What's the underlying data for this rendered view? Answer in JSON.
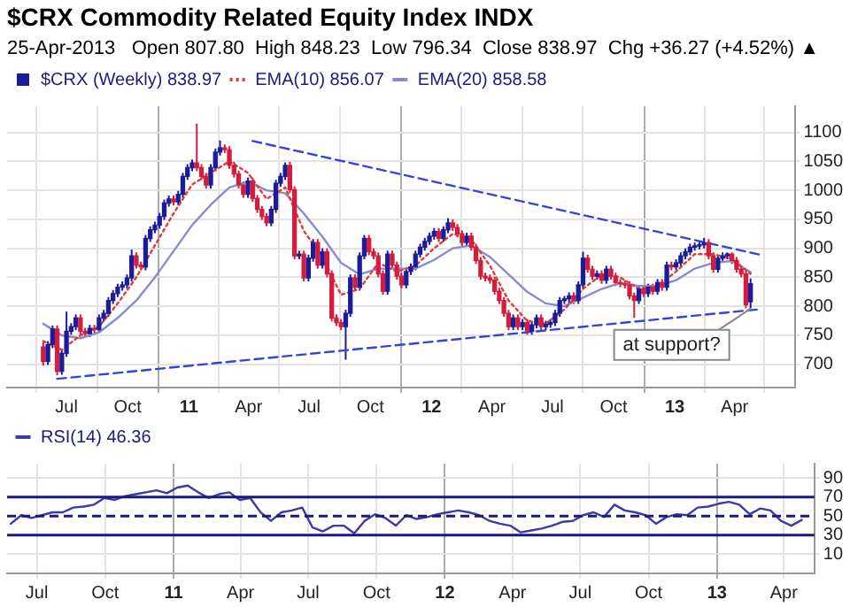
{
  "chart_data": [
    {
      "type": "candlestick",
      "title": "$CRX Commodity Related Equity Index INDX",
      "subtitle": "25-Apr-2013   Open 807.80  High 848.23  Low 796.34  Close 838.97  Chg +36.27 (+4.52%) ▲",
      "annotations": [
        {
          "text": "at support?",
          "x": "2013-04-25",
          "y": 796
        }
      ],
      "xlim": [
        "2010-05-22",
        "2013-05-12"
      ],
      "xticks": [
        {
          "value": "2010-07-01",
          "label": "Jul"
        },
        {
          "value": "2010-10-01",
          "label": "Oct"
        },
        {
          "value": "2011-01-01",
          "label": "11"
        },
        {
          "value": "2011-04-01",
          "label": "Apr"
        },
        {
          "value": "2011-07-01",
          "label": "Jul"
        },
        {
          "value": "2011-10-01",
          "label": "Oct"
        },
        {
          "value": "2012-01-01",
          "label": "12"
        },
        {
          "value": "2012-04-01",
          "label": "Apr"
        },
        {
          "value": "2012-07-01",
          "label": "Jul"
        },
        {
          "value": "2012-10-01",
          "label": "Oct"
        },
        {
          "value": "2013-01-01",
          "label": "13"
        },
        {
          "value": "2013-04-01",
          "label": "Apr"
        }
      ],
      "ylim": [
        660,
        1145
      ],
      "yticks": [
        700,
        750,
        800,
        850,
        900,
        950,
        1000,
        1050,
        1100
      ],
      "grid": true,
      "legend": "top left",
      "marker": "none",
      "series": [
        {
          "name": "$CRX (Weekly) 838.97",
          "x": [
            "2010-05-27",
            "2010-06-03",
            "2010-06-10",
            "2010-06-17",
            "2010-06-24",
            "2010-07-01",
            "2010-07-08",
            "2010-07-15",
            "2010-07-22",
            "2010-07-29",
            "2010-08-05",
            "2010-08-12",
            "2010-08-19",
            "2010-08-26",
            "2010-09-02",
            "2010-09-09",
            "2010-09-16",
            "2010-09-23",
            "2010-09-30",
            "2010-10-07",
            "2010-10-14",
            "2010-10-21",
            "2010-10-28",
            "2010-11-04",
            "2010-11-11",
            "2010-11-18",
            "2010-11-25",
            "2010-12-02",
            "2010-12-09",
            "2010-12-16",
            "2010-12-23",
            "2010-12-30",
            "2011-01-06",
            "2011-01-13",
            "2011-01-20",
            "2011-01-27",
            "2011-02-03",
            "2011-02-10",
            "2011-02-17",
            "2011-02-24",
            "2011-03-03",
            "2011-03-10",
            "2011-03-17",
            "2011-03-24",
            "2011-03-31",
            "2011-04-07",
            "2011-04-14",
            "2011-04-21",
            "2011-04-28",
            "2011-05-05",
            "2011-05-12",
            "2011-05-19",
            "2011-05-26",
            "2011-06-02",
            "2011-06-09",
            "2011-06-16",
            "2011-06-23",
            "2011-06-30",
            "2011-07-07",
            "2011-07-14",
            "2011-07-21",
            "2011-07-28",
            "2011-08-04",
            "2011-08-11",
            "2011-08-18",
            "2011-08-25",
            "2011-09-01",
            "2011-09-08",
            "2011-09-15",
            "2011-09-22",
            "2011-09-29",
            "2011-10-06",
            "2011-10-13",
            "2011-10-20",
            "2011-10-27",
            "2011-11-03",
            "2011-11-10",
            "2011-11-17",
            "2011-11-24",
            "2011-12-01",
            "2011-12-08",
            "2011-12-15",
            "2011-12-22",
            "2011-12-29",
            "2012-01-05",
            "2012-01-12",
            "2012-01-19",
            "2012-01-26",
            "2012-02-02",
            "2012-02-09",
            "2012-02-16",
            "2012-02-23",
            "2012-03-01",
            "2012-03-08",
            "2012-03-15",
            "2012-03-22",
            "2012-03-29",
            "2012-04-05",
            "2012-04-12",
            "2012-04-19",
            "2012-04-26",
            "2012-05-03",
            "2012-05-10",
            "2012-05-17",
            "2012-05-24",
            "2012-05-31",
            "2012-06-07",
            "2012-06-14",
            "2012-06-21",
            "2012-06-28",
            "2012-07-05",
            "2012-07-12",
            "2012-07-19",
            "2012-07-26",
            "2012-08-02",
            "2012-08-09",
            "2012-08-16",
            "2012-08-23",
            "2012-08-30",
            "2012-09-06",
            "2012-09-13",
            "2012-09-20",
            "2012-09-27",
            "2012-10-04",
            "2012-10-11",
            "2012-10-18",
            "2012-10-25",
            "2012-11-01",
            "2012-11-08",
            "2012-11-15",
            "2012-11-22",
            "2012-11-29",
            "2012-12-06",
            "2012-12-13",
            "2012-12-20",
            "2012-12-27",
            "2013-01-03",
            "2013-01-10",
            "2013-01-17",
            "2013-01-24",
            "2013-01-31",
            "2013-02-07",
            "2013-02-14",
            "2013-02-21",
            "2013-02-28",
            "2013-03-07",
            "2013-03-14",
            "2013-03-21",
            "2013-03-28",
            "2013-04-04",
            "2013-04-11",
            "2013-04-18",
            "2013-04-25"
          ],
          "ohlc": [
            [
              730,
              738,
              698,
              705
            ],
            [
              705,
              740,
              699,
              734
            ],
            [
              734,
              767,
              728,
              761
            ],
            [
              761,
              767,
              681,
              688
            ],
            [
              688,
              725,
              682,
              719
            ],
            [
              719,
              791,
              713,
              757
            ],
            [
              757,
              771,
              751,
              765
            ],
            [
              765,
              786,
              759,
              780
            ],
            [
              780,
              786,
              751,
              757
            ],
            [
              757,
              763,
              747,
              753
            ],
            [
              753,
              768,
              747,
              762
            ],
            [
              762,
              768,
              754,
              760
            ],
            [
              760,
              786,
              754,
              780
            ],
            [
              780,
              794,
              774,
              788
            ],
            [
              788,
              816,
              782,
              810
            ],
            [
              810,
              828,
              804,
              822
            ],
            [
              822,
              839,
              816,
              833
            ],
            [
              833,
              843,
              827,
              837
            ],
            [
              837,
              855,
              831,
              849
            ],
            [
              849,
              898,
              843,
              887
            ],
            [
              887,
              893,
              865,
              871
            ],
            [
              871,
              877,
              862,
              868
            ],
            [
              868,
              923,
              862,
              917
            ],
            [
              917,
              938,
              911,
              932
            ],
            [
              932,
              946,
              926,
              940
            ],
            [
              940,
              961,
              934,
              955
            ],
            [
              955,
              984,
              949,
              978
            ],
            [
              978,
              991,
              972,
              985
            ],
            [
              985,
              991,
              974,
              980
            ],
            [
              980,
              999,
              974,
              993
            ],
            [
              993,
              1030,
              987,
              1024
            ],
            [
              1024,
              1045,
              1018,
              1039
            ],
            [
              1039,
              1053,
              1033,
              1047
            ],
            [
              1047,
              1115,
              1033,
              1039
            ],
            [
              1039,
              1045,
              1018,
              1024
            ],
            [
              1024,
              1030,
              1003,
              1009
            ],
            [
              1009,
              1045,
              1003,
              1039
            ],
            [
              1039,
              1072,
              1033,
              1066
            ],
            [
              1066,
              1086,
              1060,
              1073
            ],
            [
              1073,
              1079,
              1064,
              1070
            ],
            [
              1070,
              1076,
              1037,
              1043
            ],
            [
              1043,
              1049,
              1022,
              1028
            ],
            [
              1028,
              1034,
              1003,
              1009
            ],
            [
              1009,
              1015,
              987,
              993
            ],
            [
              993,
              1022,
              987,
              1016
            ],
            [
              1016,
              1022,
              980,
              986
            ],
            [
              986,
              992,
              961,
              967
            ],
            [
              967,
              973,
              949,
              955
            ],
            [
              955,
              961,
              938,
              944
            ],
            [
              944,
              973,
              938,
              967
            ],
            [
              967,
              1018,
              961,
              1012
            ],
            [
              1012,
              1030,
              1006,
              1024
            ],
            [
              1024,
              1048,
              1018,
              1043
            ],
            [
              1043,
              1049,
              995,
              1001
            ],
            [
              1001,
              1007,
              881,
              887
            ],
            [
              887,
              896,
              881,
              890
            ],
            [
              890,
              896,
              843,
              849
            ],
            [
              849,
              889,
              843,
              883
            ],
            [
              883,
              916,
              877,
              910
            ],
            [
              910,
              916,
              865,
              871
            ],
            [
              871,
              900,
              865,
              894
            ],
            [
              894,
              900,
              850,
              856
            ],
            [
              856,
              862,
              774,
              780
            ],
            [
              780,
              786,
              766,
              772
            ],
            [
              772,
              778,
              759,
              765
            ],
            [
              765,
              794,
              708,
              788
            ],
            [
              788,
              855,
              782,
              849
            ],
            [
              849,
              855,
              827,
              833
            ],
            [
              833,
              893,
              827,
              887
            ],
            [
              887,
              923,
              881,
              917
            ],
            [
              917,
              923,
              888,
              894
            ],
            [
              894,
              900,
              881,
              887
            ],
            [
              887,
              893,
              850,
              856
            ],
            [
              856,
              862,
              820,
              826
            ],
            [
              826,
              896,
              820,
              890
            ],
            [
              890,
              896,
              865,
              871
            ],
            [
              871,
              877,
              846,
              852
            ],
            [
              852,
              858,
              831,
              837
            ],
            [
              837,
              866,
              831,
              860
            ],
            [
              860,
              874,
              854,
              868
            ],
            [
              868,
              896,
              862,
              890
            ],
            [
              890,
              908,
              884,
              902
            ],
            [
              902,
              918,
              896,
              912
            ],
            [
              912,
              927,
              906,
              921
            ],
            [
              921,
              935,
              915,
              929
            ],
            [
              929,
              935,
              911,
              917
            ],
            [
              917,
              938,
              911,
              932
            ],
            [
              932,
              952,
              926,
              944
            ],
            [
              944,
              950,
              930,
              936
            ],
            [
              936,
              942,
              919,
              925
            ],
            [
              925,
              931,
              904,
              910
            ],
            [
              910,
              927,
              904,
              921
            ],
            [
              921,
              927,
              896,
              902
            ],
            [
              902,
              908,
              873,
              879
            ],
            [
              879,
              885,
              846,
              852
            ],
            [
              852,
              858,
              843,
              849
            ],
            [
              849,
              855,
              839,
              845
            ],
            [
              845,
              851,
              820,
              826
            ],
            [
              826,
              832,
              804,
              810
            ],
            [
              810,
              816,
              782,
              788
            ],
            [
              788,
              794,
              759,
              765
            ],
            [
              765,
              786,
              759,
              780
            ],
            [
              780,
              786,
              759,
              765
            ],
            [
              765,
              778,
              759,
              772
            ],
            [
              772,
              778,
              751,
              757
            ],
            [
              757,
              774,
              751,
              768
            ],
            [
              768,
              786,
              762,
              780
            ],
            [
              780,
              786,
              759,
              765
            ],
            [
              765,
              775,
              759,
              769
            ],
            [
              769,
              778,
              763,
              772
            ],
            [
              772,
              794,
              766,
              788
            ],
            [
              788,
              816,
              782,
              810
            ],
            [
              810,
              818,
              804,
              813
            ],
            [
              813,
              824,
              804,
              818
            ],
            [
              818,
              824,
              804,
              810
            ],
            [
              810,
              843,
              804,
              837
            ],
            [
              837,
              894,
              831,
              883
            ],
            [
              883,
              889,
              858,
              864
            ],
            [
              864,
              870,
              846,
              852
            ],
            [
              852,
              862,
              846,
              856
            ],
            [
              856,
              862,
              839,
              845
            ],
            [
              845,
              870,
              839,
              864
            ],
            [
              864,
              870,
              846,
              852
            ],
            [
              852,
              858,
              835,
              841
            ],
            [
              841,
              847,
              833,
              839
            ],
            [
              839,
              845,
              831,
              837
            ],
            [
              837,
              843,
              812,
              818
            ],
            [
              818,
              824,
              780,
              810
            ],
            [
              810,
              836,
              804,
              830
            ],
            [
              830,
              836,
              816,
              822
            ],
            [
              822,
              839,
              816,
              833
            ],
            [
              833,
              839,
              820,
              826
            ],
            [
              826,
              847,
              820,
              841
            ],
            [
              841,
              847,
              827,
              833
            ],
            [
              833,
              877,
              827,
              871
            ],
            [
              871,
              877,
              862,
              868
            ],
            [
              868,
              881,
              862,
              875
            ],
            [
              875,
              893,
              869,
              887
            ],
            [
              887,
              900,
              881,
              894
            ],
            [
              894,
              908,
              888,
              902
            ],
            [
              902,
              910,
              896,
              904
            ],
            [
              904,
              912,
              898,
              906
            ],
            [
              906,
              918,
              900,
              910
            ],
            [
              910,
              916,
              881,
              887
            ],
            [
              887,
              893,
              858,
              864
            ],
            [
              864,
              889,
              858,
              883
            ],
            [
              883,
              893,
              877,
              887
            ],
            [
              887,
              893,
              881,
              890
            ],
            [
              890,
              893,
              873,
              879
            ],
            [
              879,
              885,
              858,
              864
            ],
            [
              864,
              870,
              850,
              856
            ],
            [
              856,
              862,
              797,
              803
            ],
            [
              807.8,
              848.23,
              796.34,
              838.97
            ]
          ]
        },
        {
          "name": "EMA(10) 856.07",
          "type": "line",
          "color": "#e03a3a",
          "line_style": "dotted",
          "x": [
            "2010-05-27",
            "2010-06-24",
            "2010-07-22",
            "2010-08-19",
            "2010-09-16",
            "2010-10-14",
            "2010-11-11",
            "2010-12-09",
            "2011-01-06",
            "2011-02-03",
            "2011-03-03",
            "2011-03-31",
            "2011-04-28",
            "2011-05-26",
            "2011-06-23",
            "2011-07-21",
            "2011-08-18",
            "2011-09-15",
            "2011-10-13",
            "2011-11-10",
            "2011-12-08",
            "2012-01-05",
            "2012-02-02",
            "2012-03-01",
            "2012-03-29",
            "2012-04-26",
            "2012-05-24",
            "2012-06-21",
            "2012-07-19",
            "2012-08-16",
            "2012-09-13",
            "2012-10-11",
            "2012-11-08",
            "2012-12-06",
            "2013-01-03",
            "2013-01-31",
            "2013-02-28",
            "2013-03-28",
            "2013-04-25"
          ],
          "values": [
            740,
            725,
            750,
            765,
            805,
            850,
            905,
            960,
            1010,
            1030,
            1050,
            1030,
            985,
            1005,
            930,
            885,
            820,
            830,
            875,
            860,
            870,
            900,
            925,
            915,
            870,
            810,
            775,
            770,
            795,
            830,
            855,
            850,
            830,
            835,
            860,
            890,
            890,
            882,
            856
          ]
        },
        {
          "name": "EMA(20) 858.58",
          "type": "line",
          "color": "#8a8ad0",
          "line_style": "solid",
          "x": [
            "2010-05-27",
            "2010-06-24",
            "2010-07-22",
            "2010-08-19",
            "2010-09-16",
            "2010-10-14",
            "2010-11-11",
            "2010-12-09",
            "2011-01-06",
            "2011-02-03",
            "2011-03-03",
            "2011-03-31",
            "2011-04-28",
            "2011-05-26",
            "2011-06-23",
            "2011-07-21",
            "2011-08-18",
            "2011-09-15",
            "2011-10-13",
            "2011-11-10",
            "2011-12-08",
            "2012-01-05",
            "2012-02-02",
            "2012-03-01",
            "2012-03-29",
            "2012-04-26",
            "2012-05-24",
            "2012-06-21",
            "2012-07-19",
            "2012-08-16",
            "2012-09-13",
            "2012-10-11",
            "2012-11-08",
            "2012-12-06",
            "2013-01-03",
            "2013-01-31",
            "2013-02-28",
            "2013-03-28",
            "2013-04-25"
          ],
          "values": [
            770,
            750,
            745,
            755,
            780,
            810,
            850,
            895,
            940,
            975,
            1005,
            1015,
            1000,
            995,
            960,
            920,
            875,
            855,
            865,
            865,
            865,
            880,
            900,
            905,
            885,
            855,
            825,
            805,
            800,
            815,
            830,
            840,
            835,
            835,
            845,
            865,
            875,
            878,
            859
          ]
        },
        {
          "type": "line",
          "color": "#3344dd",
          "line_style": "dashed",
          "x": [
            "2011-04-07",
            "2013-05-09"
          ],
          "values": [
            1085,
            889
          ]
        },
        {
          "type": "line",
          "color": "#3344dd",
          "line_style": "dashed",
          "x": [
            "2010-06-17",
            "2013-05-09"
          ],
          "values": [
            675,
            795
          ]
        }
      ]
    },
    {
      "type": "line",
      "xlim": [
        "2010-05-22",
        "2013-05-12"
      ],
      "xticks": [
        {
          "value": "2010-07-01",
          "label": "Jul"
        },
        {
          "value": "2010-10-01",
          "label": "Oct"
        },
        {
          "value": "2011-01-01",
          "label": "11"
        },
        {
          "value": "2011-04-01",
          "label": "Apr"
        },
        {
          "value": "2011-07-01",
          "label": "Jul"
        },
        {
          "value": "2011-10-01",
          "label": "Oct"
        },
        {
          "value": "2012-01-01",
          "label": "12"
        },
        {
          "value": "2012-04-01",
          "label": "Apr"
        },
        {
          "value": "2012-07-01",
          "label": "Jul"
        },
        {
          "value": "2012-10-01",
          "label": "Oct"
        },
        {
          "value": "2013-01-01",
          "label": "13"
        },
        {
          "value": "2013-04-01",
          "label": "Apr"
        }
      ],
      "ylim": [
        -10,
        105
      ],
      "yticks": [
        10,
        30,
        50,
        70,
        90
      ],
      "grid": true,
      "legend": "top left",
      "marker": "none",
      "ref_lines": [
        {
          "axis": "y",
          "value": 70,
          "color": "#1a1a80",
          "line_style": "solid"
        },
        {
          "axis": "y",
          "value": 50,
          "color": "#1a1a80",
          "line_style": "dashed"
        },
        {
          "axis": "y",
          "value": 30,
          "color": "#1a1a80",
          "line_style": "solid"
        }
      ],
      "series": [
        {
          "name": "RSI(14) 46.36",
          "color": "#3a3aa8",
          "x": [
            "2010-05-27",
            "2010-06-10",
            "2010-06-24",
            "2010-07-08",
            "2010-07-22",
            "2010-08-05",
            "2010-08-19",
            "2010-09-02",
            "2010-09-16",
            "2010-09-30",
            "2010-10-14",
            "2010-10-28",
            "2010-11-11",
            "2010-11-25",
            "2010-12-09",
            "2010-12-23",
            "2011-01-06",
            "2011-01-20",
            "2011-02-03",
            "2011-02-17",
            "2011-03-03",
            "2011-03-17",
            "2011-03-31",
            "2011-04-14",
            "2011-04-28",
            "2011-05-12",
            "2011-05-26",
            "2011-06-09",
            "2011-06-23",
            "2011-07-07",
            "2011-07-21",
            "2011-08-04",
            "2011-08-18",
            "2011-09-01",
            "2011-09-15",
            "2011-09-29",
            "2011-10-13",
            "2011-10-27",
            "2011-11-10",
            "2011-11-24",
            "2011-12-08",
            "2011-12-22",
            "2012-01-05",
            "2012-01-19",
            "2012-02-02",
            "2012-02-16",
            "2012-03-01",
            "2012-03-15",
            "2012-03-29",
            "2012-04-12",
            "2012-04-26",
            "2012-05-10",
            "2012-05-24",
            "2012-06-07",
            "2012-06-21",
            "2012-07-05",
            "2012-07-19",
            "2012-08-02",
            "2012-08-16",
            "2012-08-30",
            "2012-09-13",
            "2012-09-27",
            "2012-10-11",
            "2012-10-25",
            "2012-11-08",
            "2012-11-22",
            "2012-12-06",
            "2012-12-20",
            "2013-01-03",
            "2013-01-17",
            "2013-01-31",
            "2013-02-14",
            "2013-02-28",
            "2013-03-14",
            "2013-03-28",
            "2013-04-11",
            "2013-04-25"
          ],
          "values": [
            42,
            51,
            48,
            51,
            54,
            54,
            59,
            60,
            62,
            69,
            67,
            71,
            73,
            75,
            77,
            74,
            80,
            82,
            75,
            69,
            73,
            75,
            67,
            69,
            54,
            45,
            54,
            56,
            59,
            38,
            34,
            40,
            40,
            32,
            45,
            52,
            48,
            40,
            51,
            47,
            49,
            52,
            54,
            56,
            54,
            51,
            45,
            42,
            40,
            33,
            35,
            37,
            40,
            44,
            45,
            51,
            54,
            49,
            62,
            56,
            54,
            51,
            42,
            49,
            52,
            51,
            59,
            60,
            63,
            65,
            62,
            52,
            58,
            56,
            45,
            40,
            46
          ]
        }
      ]
    }
  ]
}
